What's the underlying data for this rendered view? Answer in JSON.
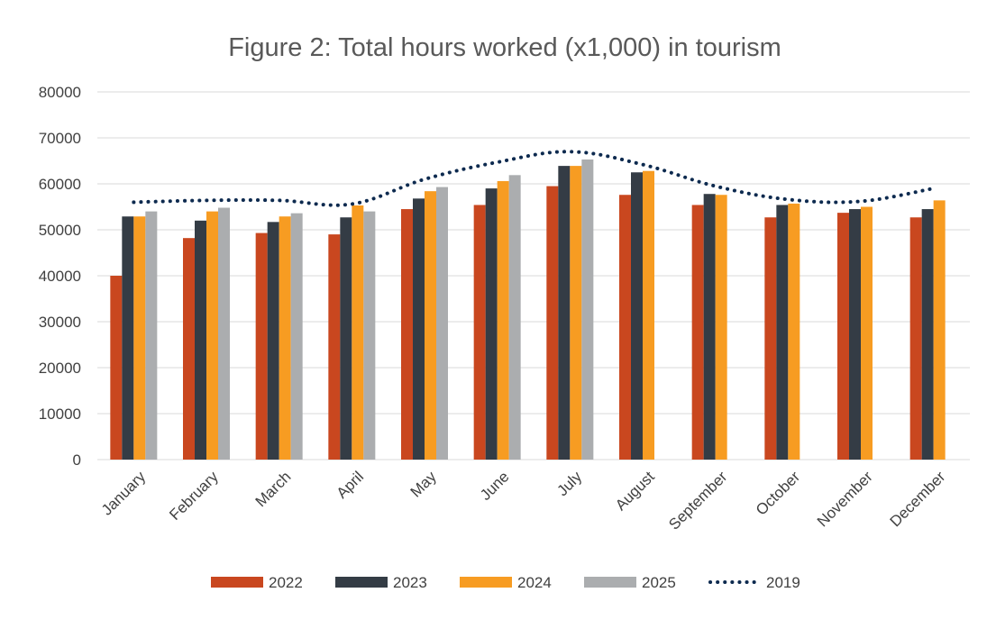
{
  "chart_data": {
    "type": "bar",
    "title": "Figure 2: Total hours worked (x1,000) in tourism",
    "xlabel": "",
    "ylabel": "",
    "ylim": [
      0,
      80000
    ],
    "yticks": [
      "0",
      "10000",
      "20000",
      "30000",
      "40000",
      "50000",
      "60000",
      "70000",
      "80000"
    ],
    "grid": true,
    "legend_position": "bottom",
    "categories": [
      "January",
      "February",
      "March",
      "April",
      "May",
      "June",
      "July",
      "August",
      "September",
      "October",
      "November",
      "December"
    ],
    "series": [
      {
        "name": "2022",
        "type": "bar",
        "color": "#c9471f",
        "values": [
          40000,
          48200,
          49300,
          49000,
          54500,
          55400,
          59500,
          57600,
          55400,
          52700,
          53700,
          52700
        ]
      },
      {
        "name": "2023",
        "type": "bar",
        "color": "#343c45",
        "values": [
          52900,
          52000,
          51700,
          52700,
          56800,
          59000,
          63900,
          62500,
          57800,
          55400,
          54500,
          54500
        ]
      },
      {
        "name": "2024",
        "type": "bar",
        "color": "#f79c22",
        "values": [
          52900,
          54000,
          52900,
          55300,
          58400,
          60600,
          63900,
          62800,
          57600,
          55700,
          55000,
          56400
        ]
      },
      {
        "name": "2025",
        "type": "bar",
        "color": "#abadaf",
        "values": [
          54000,
          54800,
          53600,
          54000,
          59300,
          61900,
          65300,
          null,
          null,
          null,
          null,
          null
        ]
      },
      {
        "name": "2019",
        "type": "line",
        "style": "dotted",
        "color": "#0d2a4f",
        "values": [
          56000,
          56400,
          56400,
          55600,
          61000,
          64700,
          67000,
          64200,
          59500,
          56600,
          56200,
          59000
        ]
      }
    ]
  }
}
